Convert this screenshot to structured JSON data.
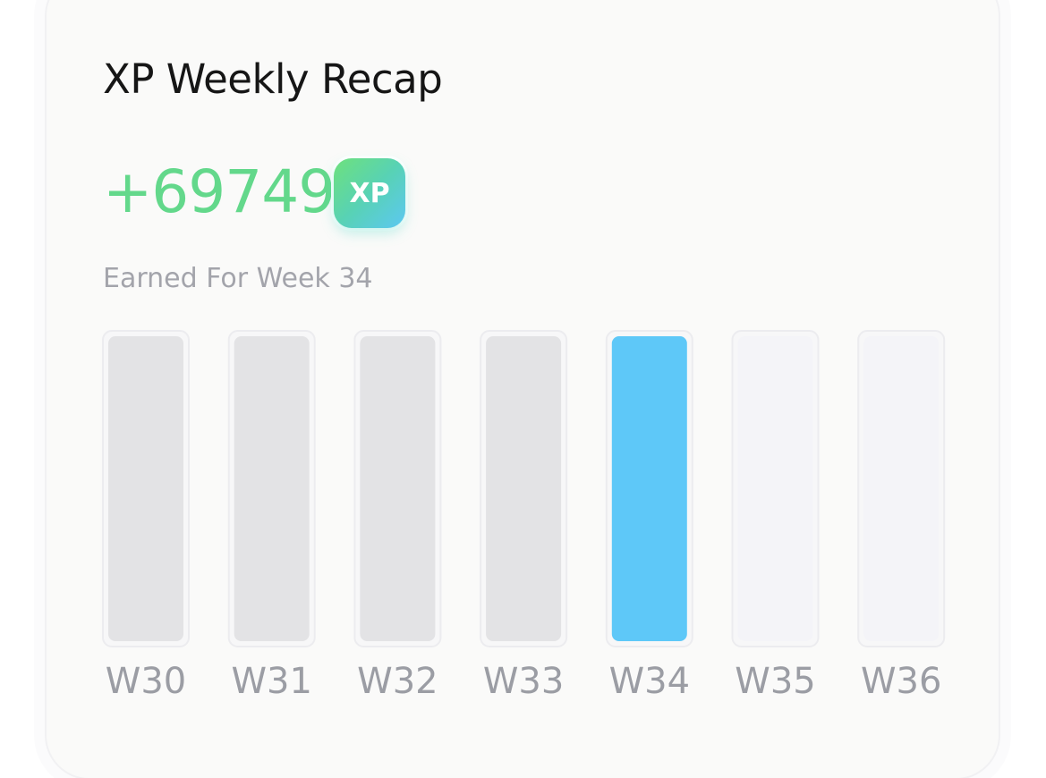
{
  "title": "XP Weekly Recap",
  "amount": "+69749",
  "badge": "XP",
  "subtitle": "Earned For Week 34",
  "weeks": [
    {
      "label": "W30",
      "color": "#e3e3e5"
    },
    {
      "label": "W31",
      "color": "#e3e3e5"
    },
    {
      "label": "W32",
      "color": "#e3e3e5"
    },
    {
      "label": "W33",
      "color": "#e3e3e5"
    },
    {
      "label": "W34",
      "color": "#5ec8f8"
    },
    {
      "label": "W35",
      "color": "#f4f4f8"
    },
    {
      "label": "W36",
      "color": "#f4f4f8"
    }
  ]
}
